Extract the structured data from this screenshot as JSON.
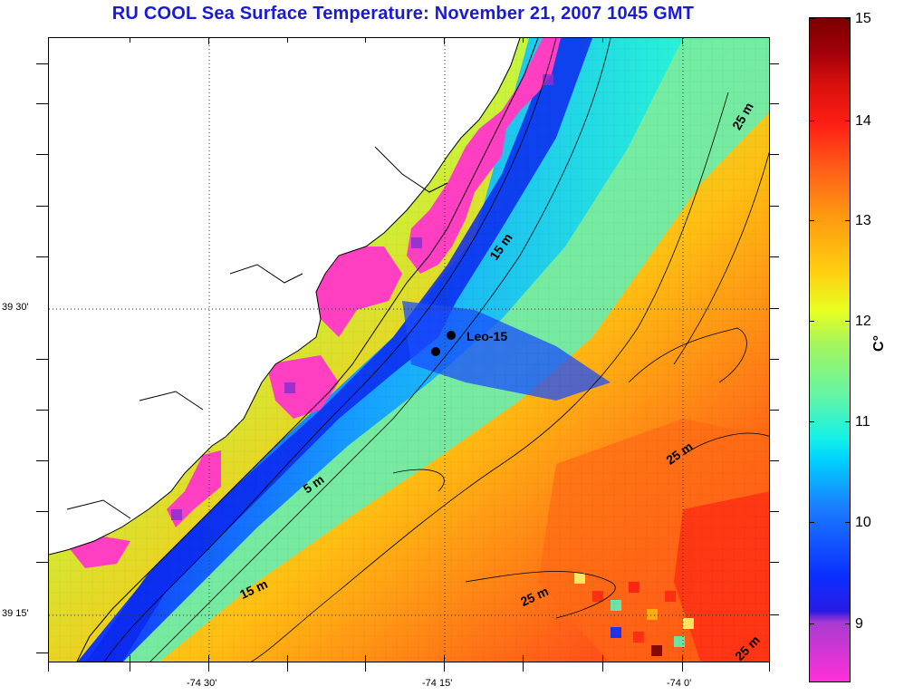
{
  "title": "RU COOL  Sea Surface Temperature:  November 21, 2007 1045 GMT",
  "colorbar": {
    "unit": "C°",
    "ticks": [
      "15",
      "14",
      "13",
      "12",
      "11",
      "10",
      "9"
    ],
    "min": 8.5,
    "max": 15
  },
  "axes": {
    "lon_labels": [
      "-74 30'",
      "-74 15'",
      "-74 0'"
    ],
    "lat_labels": [
      "39 30'",
      "39 15'"
    ]
  },
  "station": {
    "label": "Leo-15"
  },
  "contours": {
    "labels": [
      "25 m",
      "15 m",
      "5 m",
      "25 m",
      "15 m",
      "25 m",
      "25 m"
    ]
  },
  "colors": {
    "title": "#1a1ad6",
    "land": "#ffffff",
    "cloud_mask": "#ff3fc2"
  }
}
